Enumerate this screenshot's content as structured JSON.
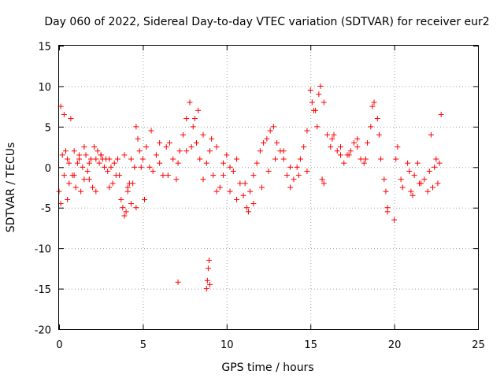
{
  "chart_data": {
    "type": "scatter",
    "title": "Day 060 of 2022, Sidereal Day-to-day VTEC variation (SDTVAR) for receiver eur2",
    "xlabel": "GPS time / hours",
    "ylabel": "SDTVAR / TECUs",
    "xlim": [
      0,
      25
    ],
    "ylim": [
      -20,
      15
    ],
    "xticks": [
      0,
      5,
      10,
      15,
      20,
      25
    ],
    "yticks": [
      -20,
      -15,
      -10,
      -5,
      0,
      5,
      10,
      15
    ],
    "xtick_labels": [
      "0",
      "5",
      "10",
      "15",
      "20",
      "25"
    ],
    "ytick_labels": [
      "-20",
      "-15",
      "-10",
      "-5",
      "0",
      "5",
      "10",
      "15"
    ],
    "grid": true,
    "marker": "+",
    "marker_color": "#ff0000",
    "series": [
      {
        "name": "SDTVAR",
        "x": [
          0.0,
          0.1,
          0.2,
          0.3,
          0.4,
          0.5,
          0.6,
          0.7,
          0.8,
          0.9,
          1.0,
          1.1,
          1.2,
          1.3,
          1.4,
          1.5,
          1.6,
          1.7,
          1.8,
          1.9,
          2.0,
          2.1,
          2.2,
          2.3,
          2.4,
          2.5,
          2.6,
          2.7,
          2.8,
          2.9,
          3.0,
          3.1,
          3.2,
          3.3,
          3.4,
          3.5,
          3.6,
          3.7,
          3.8,
          3.9,
          4.0,
          4.1,
          4.2,
          4.3,
          4.4,
          4.5,
          4.6,
          4.7,
          4.8,
          4.9,
          5.0,
          5.2,
          5.4,
          5.6,
          5.8,
          6.0,
          6.2,
          6.4,
          6.6,
          6.8,
          7.0,
          7.2,
          7.4,
          7.6,
          7.8,
          8.0,
          8.2,
          8.4,
          8.6,
          8.8,
          9.0,
          9.2,
          9.4,
          9.6,
          9.8,
          10.0,
          10.2,
          10.4,
          10.6,
          10.8,
          11.0,
          11.2,
          11.4,
          11.6,
          11.8,
          12.0,
          12.2,
          12.4,
          12.6,
          12.8,
          13.0,
          13.2,
          13.4,
          13.6,
          13.8,
          14.0,
          14.2,
          14.4,
          14.6,
          14.8,
          15.0,
          15.2,
          15.4,
          15.6,
          15.8,
          16.0,
          16.2,
          16.4,
          16.6,
          16.8,
          17.0,
          17.2,
          17.4,
          17.6,
          17.8,
          18.0,
          18.2,
          18.4,
          18.6,
          18.8,
          19.0,
          19.2,
          19.4,
          19.6,
          20.0,
          20.2,
          20.4,
          20.8,
          21.0,
          21.2,
          21.4,
          21.6,
          22.0,
          22.2,
          22.4,
          22.6,
          22.8,
          0.1,
          0.3,
          0.5,
          0.6,
          0.9,
          1.2,
          1.5,
          1.8,
          2.2,
          2.5,
          3.0,
          3.5,
          3.9,
          4.1,
          4.3,
          4.6,
          5.1,
          5.5,
          6.0,
          6.5,
          7.1,
          7.6,
          7.9,
          8.1,
          8.3,
          8.6,
          9.1,
          9.4,
          9.8,
          10.2,
          10.6,
          11.1,
          11.3,
          11.6,
          12.1,
          12.5,
          12.9,
          13.4,
          13.8,
          14.3,
          14.8,
          15.1,
          15.3,
          15.5,
          15.7,
          15.8,
          16.3,
          16.8,
          17.3,
          17.8,
          18.3,
          18.7,
          19.1,
          19.5,
          19.6,
          20.1,
          20.5,
          20.9,
          21.1,
          21.5,
          21.8,
          22.1,
          22.3,
          22.5,
          22.7,
          7.1,
          8.8,
          8.85,
          8.9,
          8.95,
          9.0
        ],
        "y": [
          -3.0,
          -4.5,
          1.5,
          -1.0,
          2.0,
          1.0,
          0.5,
          6.0,
          -1.0,
          2.0,
          -2.5,
          0.5,
          1.5,
          -3.0,
          0.0,
          -1.5,
          1.5,
          -0.5,
          0.5,
          1.0,
          -2.5,
          2.5,
          1.0,
          2.0,
          0.5,
          1.5,
          1.0,
          0.0,
          1.0,
          -0.5,
          1.0,
          0.0,
          -2.0,
          0.5,
          -1.0,
          1.0,
          -1.0,
          -4.0,
          -5.0,
          -6.0,
          -5.5,
          -3.0,
          -2.0,
          1.0,
          -2.0,
          0.0,
          5.0,
          3.5,
          2.0,
          0.0,
          1.0,
          2.5,
          0.0,
          -0.5,
          1.5,
          0.5,
          -1.0,
          2.5,
          3.0,
          1.0,
          -1.5,
          2.0,
          4.0,
          6.0,
          8.0,
          5.0,
          3.0,
          1.0,
          -1.5,
          0.5,
          2.0,
          -1.0,
          -3.0,
          -2.5,
          0.5,
          1.5,
          0.0,
          -0.5,
          1.0,
          -2.0,
          -3.5,
          -5.0,
          -3.0,
          -1.0,
          0.5,
          2.0,
          3.0,
          3.5,
          4.5,
          5.0,
          3.0,
          2.0,
          1.0,
          -1.0,
          -2.5,
          -1.5,
          0.0,
          1.0,
          2.5,
          4.5,
          9.5,
          7.0,
          5.0,
          10.0,
          8.0,
          4.0,
          2.5,
          4.0,
          2.0,
          1.5,
          0.5,
          1.5,
          2.0,
          3.0,
          2.5,
          1.0,
          0.5,
          3.0,
          5.0,
          8.0,
          6.0,
          1.0,
          -1.5,
          -5.0,
          -6.5,
          2.5,
          -1.5,
          0.5,
          -3.0,
          -1.0,
          0.5,
          -2.0,
          -3.0,
          4.0,
          0.0,
          -2.0,
          6.5,
          7.5,
          6.5,
          -4.0,
          -2.0,
          -1.0,
          1.0,
          2.5,
          -1.5,
          -3.0,
          1.5,
          -2.5,
          1.0,
          1.5,
          -2.5,
          -4.5,
          -5.0,
          -4.0,
          4.5,
          3.0,
          -1.0,
          0.5,
          2.0,
          2.5,
          6.0,
          7.0,
          4.0,
          3.5,
          2.5,
          -1.0,
          -3.0,
          -4.0,
          -2.0,
          -5.5,
          -4.5,
          -2.5,
          -0.5,
          1.0,
          2.0,
          0.0,
          -1.0,
          -0.5,
          8.0,
          7.0,
          9.0,
          -1.5,
          -2.0,
          3.5,
          2.5,
          1.5,
          3.5,
          1.0,
          7.5,
          4.0,
          -3.0,
          -5.5,
          1.0,
          -2.5,
          -0.5,
          -3.5,
          -2.0,
          -1.5,
          -0.5,
          -2.5,
          1.0,
          0.5,
          -14.2,
          -15.0,
          -14.0,
          -12.5,
          -11.5,
          -14.5
        ]
      }
    ]
  }
}
